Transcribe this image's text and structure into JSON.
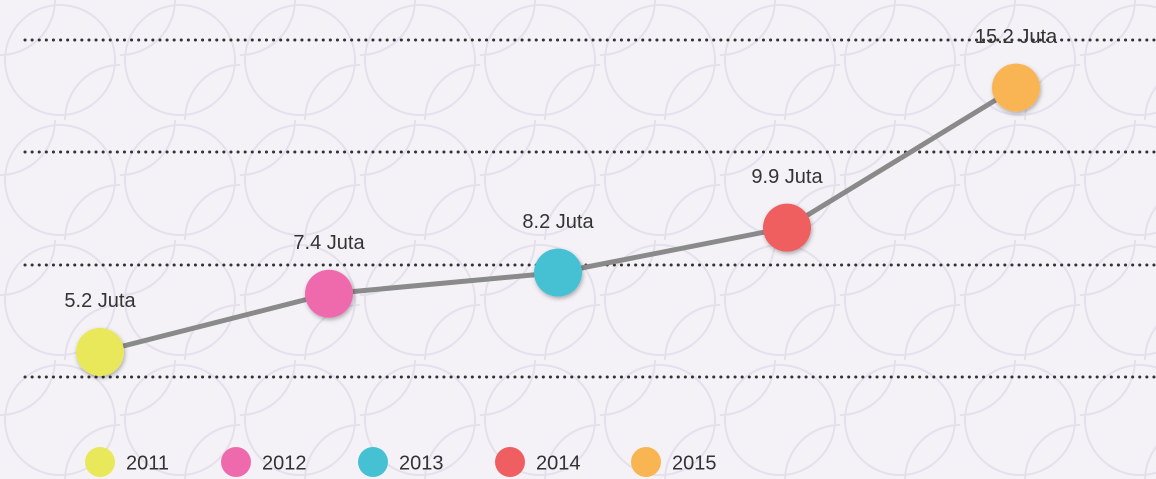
{
  "chart_data": {
    "type": "line",
    "categories": [
      "2011",
      "2012",
      "2013",
      "2014",
      "2015"
    ],
    "values": [
      5.2,
      7.4,
      8.2,
      9.9,
      15.2
    ],
    "value_labels": [
      "5.2 Juta",
      "7.4 Juta",
      "8.2 Juta",
      "9.9 Juta",
      "15.2 Juta"
    ],
    "colors": [
      "#e8e85a",
      "#ee6aad",
      "#45c1d3",
      "#ef5f61",
      "#f9b552"
    ],
    "line_color": "#8a8a8a",
    "ylim": [
      4.25,
      17
    ]
  }
}
